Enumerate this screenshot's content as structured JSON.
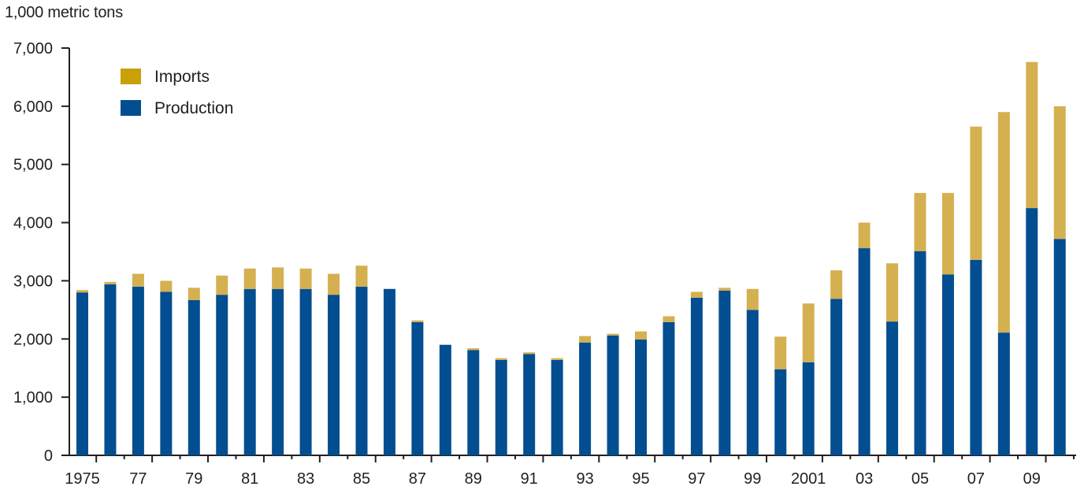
{
  "colors": {
    "imports": "#d4b050",
    "imports_legend": "#c8a008",
    "production": "#034e90",
    "axis": "#231f20"
  },
  "chart_data": {
    "type": "bar",
    "stacked": true,
    "title": "",
    "ylabel": "1,000 metric tons",
    "xlabel": "",
    "ylim": [
      0,
      7000
    ],
    "yticks": [
      0,
      1000,
      2000,
      3000,
      4000,
      5000,
      6000,
      7000
    ],
    "ytick_labels": [
      "0",
      "1,000",
      "2,000",
      "3,000",
      "4,000",
      "5,000",
      "6,000",
      "7,000"
    ],
    "grid": false,
    "legend_position": "top-left",
    "categories": [
      "1975",
      "1976",
      "1977",
      "1978",
      "1979",
      "1980",
      "1981",
      "1982",
      "1983",
      "1984",
      "1985",
      "1986",
      "1987",
      "1988",
      "1989",
      "1990",
      "1991",
      "1992",
      "1993",
      "1994",
      "1995",
      "1996",
      "1997",
      "1998",
      "1999",
      "2000",
      "2001",
      "2002",
      "2003",
      "2004",
      "2005",
      "2006",
      "2007",
      "2008",
      "2009",
      "2010"
    ],
    "xtick_labels": [
      "1975",
      "77",
      "79",
      "81",
      "83",
      "85",
      "87",
      "89",
      "91",
      "93",
      "95",
      "97",
      "99",
      "2001",
      "03",
      "05",
      "07",
      "09"
    ],
    "series": [
      {
        "name": "Production",
        "values": [
          2800,
          2940,
          2900,
          2810,
          2670,
          2760,
          2860,
          2860,
          2860,
          2760,
          2900,
          2860,
          2290,
          1900,
          1810,
          1640,
          1740,
          1640,
          1940,
          2060,
          1990,
          2290,
          2710,
          2830,
          2500,
          1480,
          1600,
          2690,
          3560,
          2300,
          3510,
          3110,
          3360,
          2110,
          4250,
          3720
        ]
      },
      {
        "name": "Imports",
        "values": [
          40,
          40,
          220,
          190,
          210,
          330,
          350,
          370,
          350,
          360,
          360,
          0,
          30,
          0,
          30,
          30,
          30,
          30,
          110,
          30,
          140,
          100,
          100,
          50,
          360,
          560,
          1010,
          490,
          440,
          1000,
          1000,
          1400,
          2290,
          3790,
          2510,
          2280
        ]
      }
    ]
  }
}
